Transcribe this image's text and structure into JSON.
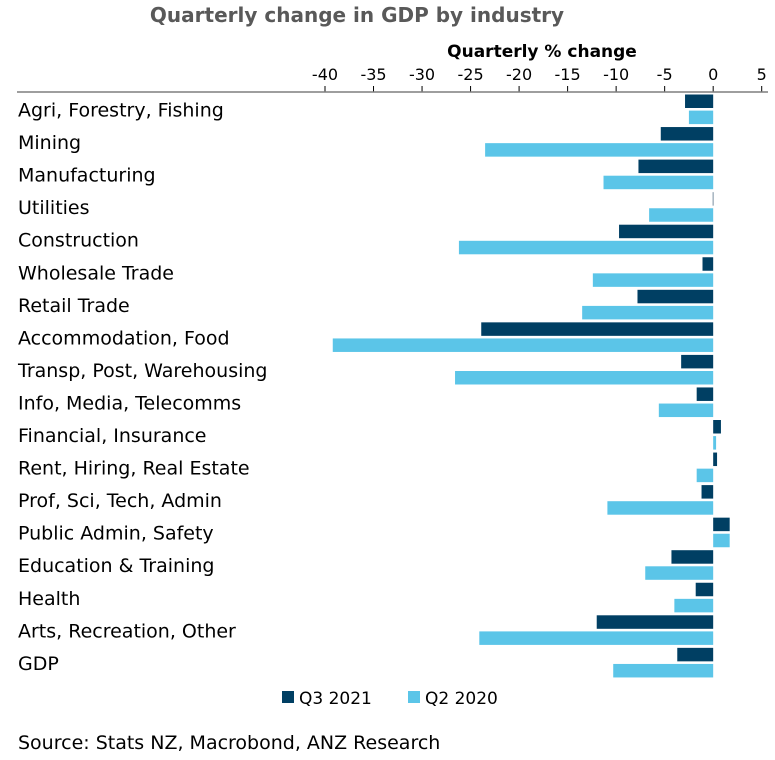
{
  "chart_data": {
    "type": "bar",
    "orientation": "horizontal",
    "title": "Quarterly change in GDP by industry",
    "xlabel": "Quarterly % change",
    "ylabel": "",
    "xlim": [
      -40,
      5
    ],
    "xticks": [
      -40,
      -35,
      -30,
      -25,
      -20,
      -15,
      -10,
      -5,
      0,
      5
    ],
    "axis_position": "top",
    "grid": false,
    "legend_position": "bottom",
    "categories": [
      "Agri, Forestry, Fishing",
      "Mining",
      "Manufacturing",
      "Utilities",
      "Construction",
      "Wholesale Trade",
      "Retail Trade",
      "Accommodation, Food",
      "Transp, Post, Warehousing",
      "Info, Media, Telecomms",
      "Financial, Insurance",
      "Rent, Hiring, Real Estate",
      "Prof, Sci, Tech, Admin",
      "Public Admin, Safety",
      "Education & Training",
      "Health",
      "Arts, Recreation, Other",
      "GDP"
    ],
    "series": [
      {
        "name": "Q3 2021",
        "color": "#003f63",
        "values": [
          -2.9,
          -5.4,
          -7.7,
          0.0,
          -9.7,
          -1.1,
          -7.8,
          -23.9,
          -3.3,
          -1.7,
          0.8,
          0.4,
          -1.2,
          1.7,
          -4.3,
          -1.8,
          -12.0,
          -3.7
        ]
      },
      {
        "name": "Q2 2020",
        "color": "#5bc5e8",
        "values": [
          -2.5,
          -23.5,
          -11.3,
          -6.6,
          -26.2,
          -12.4,
          -13.5,
          -39.2,
          -26.6,
          -5.6,
          0.3,
          -1.7,
          -10.9,
          1.7,
          -7.0,
          -4.0,
          -24.1,
          -10.3
        ]
      }
    ],
    "source": "Source: Stats NZ, Macrobond, ANZ Research"
  }
}
